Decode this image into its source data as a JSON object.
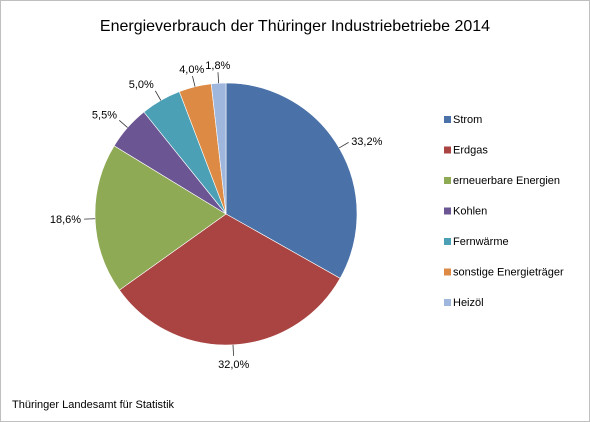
{
  "chart_data": {
    "type": "pie",
    "title": "Energieverbrauch der Thüringer Industriebetriebe 2014",
    "categories": [
      "Strom",
      "Erdgas",
      "erneuerbare Energien",
      "Kohlen",
      "Fernwärme",
      "sonstige Energieträger",
      "Heizöl"
    ],
    "values": [
      33.2,
      32.0,
      18.6,
      5.5,
      5.0,
      4.0,
      1.8
    ],
    "value_labels": [
      "33,2%",
      "32,0%",
      "18,6%",
      "5,5%",
      "5,0%",
      "4,0%",
      "1,8%"
    ],
    "colors": [
      "#4a72a8",
      "#a94442",
      "#8faa55",
      "#6b5592",
      "#4ba0b6",
      "#dd8a44",
      "#9fb7dc"
    ],
    "start_angle_deg": 0,
    "direction": "clockwise",
    "legend_position": "right"
  },
  "footer": {
    "source": "Thüringer Landesamt für Statistik"
  }
}
